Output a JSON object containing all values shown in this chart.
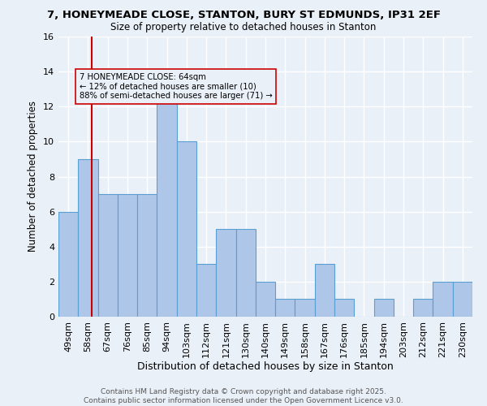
{
  "title": "7, HONEYMEADE CLOSE, STANTON, BURY ST EDMUNDS, IP31 2EF",
  "subtitle": "Size of property relative to detached houses in Stanton",
  "xlabel": "Distribution of detached houses by size in Stanton",
  "ylabel": "Number of detached properties",
  "bar_labels": [
    "49sqm",
    "58sqm",
    "67sqm",
    "76sqm",
    "85sqm",
    "94sqm",
    "103sqm",
    "112sqm",
    "121sqm",
    "130sqm",
    "140sqm",
    "149sqm",
    "158sqm",
    "167sqm",
    "176sqm",
    "185sqm",
    "194sqm",
    "203sqm",
    "212sqm",
    "221sqm",
    "230sqm"
  ],
  "bar_values": [
    6,
    9,
    7,
    7,
    7,
    13,
    10,
    3,
    5,
    5,
    2,
    1,
    1,
    3,
    1,
    0,
    1,
    0,
    1,
    2,
    2
  ],
  "bar_color": "#aec6e8",
  "bar_edgecolor": "#5a9fd4",
  "bg_color": "#eaf0f8",
  "grid_color": "#ffffff",
  "vline_color": "#cc0000",
  "annotation_text": "7 HONEYMEADE CLOSE: 64sqm\n← 12% of detached houses are smaller (10)\n88% of semi-detached houses are larger (71) →",
  "annotation_box_edgecolor": "#cc0000",
  "ylim": [
    0,
    16
  ],
  "yticks": [
    0,
    2,
    4,
    6,
    8,
    10,
    12,
    14,
    16
  ],
  "footer": "Contains HM Land Registry data © Crown copyright and database right 2025.\nContains public sector information licensed under the Open Government Licence v3.0.",
  "vline_pos": 1.67
}
